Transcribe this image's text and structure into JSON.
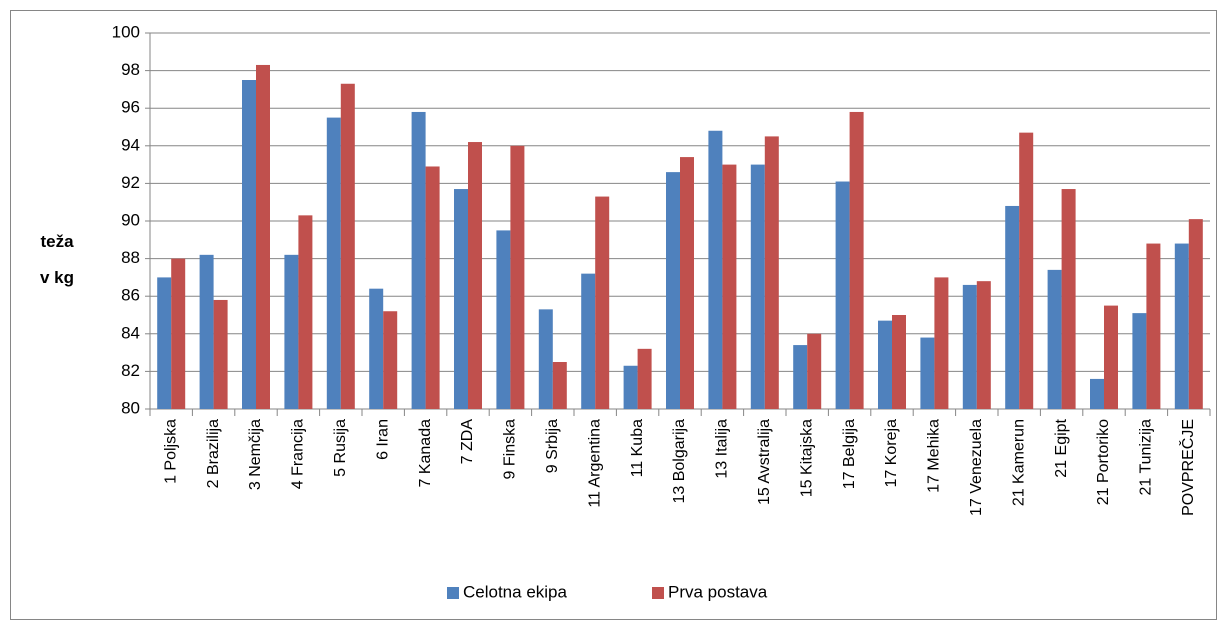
{
  "chart_data": {
    "type": "bar",
    "y_label": "teža v kg",
    "categories": [
      "1 Poljska",
      "2 Brazilija",
      "3 Nemčija",
      "4 Francija",
      "5 Rusija",
      "6 Iran",
      "7 Kanada",
      "7 ZDA",
      "9 Finska",
      "9 Srbija",
      "11 Argentina",
      "11 Kuba",
      "13 Bolgarija",
      "13 Italija",
      "15 Avstralija",
      "15 Kitajska",
      "17 Belgija",
      "17 Koreja",
      "17 Mehika",
      "17 Venezuela",
      "21 Kamerun",
      "21 Egipt",
      "21 Portoriko",
      "21 Tunizija",
      "POVPREČJE"
    ],
    "series": [
      {
        "name": "Celotna ekipa",
        "color": "#4f81bd",
        "values": [
          87.0,
          88.2,
          97.5,
          88.2,
          95.5,
          86.4,
          95.8,
          91.7,
          89.5,
          85.3,
          87.2,
          82.3,
          92.6,
          94.8,
          93.0,
          83.4,
          92.1,
          84.7,
          83.8,
          86.6,
          90.8,
          87.4,
          81.6,
          85.1,
          88.8
        ]
      },
      {
        "name": "Prva postava",
        "color": "#c0504d",
        "values": [
          88.0,
          85.8,
          98.3,
          90.3,
          97.3,
          85.2,
          92.9,
          94.2,
          94.0,
          82.5,
          91.3,
          83.2,
          93.4,
          93.0,
          94.5,
          84.0,
          95.8,
          85.0,
          87.0,
          86.8,
          94.7,
          91.7,
          85.5,
          88.8,
          90.1
        ]
      }
    ],
    "ylim": [
      80,
      100
    ],
    "yticks": [
      80,
      82,
      84,
      86,
      88,
      90,
      92,
      94,
      96,
      98,
      100
    ],
    "grid": true,
    "legend": "bottom"
  }
}
